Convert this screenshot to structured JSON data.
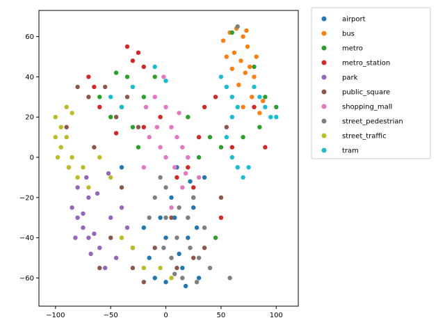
{
  "chart_data": {
    "type": "scatter",
    "title": "",
    "xlabel": "",
    "ylabel": "",
    "xlim": [
      -115,
      120
    ],
    "ylim": [
      -74,
      73
    ],
    "xticks": [
      -100,
      -50,
      0,
      50,
      100
    ],
    "yticks": [
      -60,
      -40,
      -20,
      0,
      20,
      40,
      60
    ],
    "grid": false,
    "legend_position": "outside upper-right",
    "series": [
      {
        "name": "airport",
        "color": "#1f77b4",
        "points": [
          [
            -40,
            -5
          ],
          [
            -30,
            -45
          ],
          [
            -20,
            -35
          ],
          [
            -10,
            -60
          ],
          [
            0,
            -40
          ],
          [
            5,
            -20
          ],
          [
            10,
            -5
          ],
          [
            15,
            -55
          ],
          [
            20,
            -40
          ],
          [
            25,
            -25
          ],
          [
            30,
            -60
          ],
          [
            35,
            -10
          ],
          [
            0,
            -62
          ],
          [
            -5,
            -30
          ],
          [
            12,
            -48
          ],
          [
            22,
            -12
          ],
          [
            28,
            -35
          ],
          [
            18,
            -64
          ],
          [
            -15,
            -50
          ],
          [
            8,
            -30
          ]
        ]
      },
      {
        "name": "bus",
        "color": "#ff7f0e",
        "points": [
          [
            52,
            58
          ],
          [
            58,
            62
          ],
          [
            64,
            64
          ],
          [
            70,
            60
          ],
          [
            74,
            55
          ],
          [
            76,
            45
          ],
          [
            80,
            40
          ],
          [
            72,
            42
          ],
          [
            68,
            48
          ],
          [
            62,
            52
          ],
          [
            78,
            30
          ],
          [
            85,
            22
          ],
          [
            66,
            36
          ],
          [
            60,
            44
          ],
          [
            82,
            50
          ],
          [
            55,
            50
          ],
          [
            73,
            63
          ],
          [
            88,
            28
          ],
          [
            60,
            30
          ],
          [
            70,
            25
          ]
        ]
      },
      {
        "name": "metro",
        "color": "#2ca02c",
        "points": [
          [
            -45,
            42
          ],
          [
            -35,
            40
          ],
          [
            -20,
            30
          ],
          [
            -10,
            40
          ],
          [
            -50,
            20
          ],
          [
            -60,
            30
          ],
          [
            -30,
            15
          ],
          [
            60,
            62
          ],
          [
            90,
            30
          ],
          [
            85,
            15
          ],
          [
            40,
            10
          ],
          [
            30,
            0
          ],
          [
            50,
            5
          ],
          [
            -40,
            25
          ],
          [
            45,
            -40
          ],
          [
            80,
            45
          ],
          [
            100,
            25
          ],
          [
            -25,
            5
          ],
          [
            20,
            20
          ],
          [
            70,
            10
          ]
        ]
      },
      {
        "name": "metro_station",
        "color": "#d62728",
        "points": [
          [
            -35,
            55
          ],
          [
            -30,
            48
          ],
          [
            -25,
            52
          ],
          [
            -20,
            45
          ],
          [
            -70,
            40
          ],
          [
            -65,
            35
          ],
          [
            -60,
            25
          ],
          [
            -45,
            12
          ],
          [
            -20,
            15
          ],
          [
            10,
            -10
          ],
          [
            20,
            -5
          ],
          [
            30,
            10
          ],
          [
            35,
            25
          ],
          [
            45,
            30
          ],
          [
            60,
            5
          ],
          [
            80,
            25
          ],
          [
            90,
            5
          ],
          [
            50,
            -30
          ],
          [
            25,
            -15
          ],
          [
            -5,
            20
          ]
        ]
      },
      {
        "name": "park",
        "color": "#9467bd",
        "points": [
          [
            -85,
            -25
          ],
          [
            -80,
            -30
          ],
          [
            -75,
            -35
          ],
          [
            -70,
            -40
          ],
          [
            -65,
            -38
          ],
          [
            -80,
            -15
          ],
          [
            -70,
            -20
          ],
          [
            -75,
            -28
          ],
          [
            -60,
            -45
          ],
          [
            -55,
            -55
          ],
          [
            -50,
            -30
          ],
          [
            -40,
            -25
          ],
          [
            -35,
            -35
          ],
          [
            -45,
            -50
          ],
          [
            -88,
            -5
          ],
          [
            -72,
            -10
          ],
          [
            -62,
            -18
          ],
          [
            -52,
            -8
          ],
          [
            -82,
            -40
          ],
          [
            -68,
            -48
          ]
        ]
      },
      {
        "name": "public_square",
        "color": "#8c564b",
        "points": [
          [
            -80,
            35
          ],
          [
            -70,
            30
          ],
          [
            -55,
            35
          ],
          [
            -45,
            20
          ],
          [
            -35,
            30
          ],
          [
            -25,
            15
          ],
          [
            -90,
            15
          ],
          [
            -65,
            5
          ],
          [
            -40,
            -15
          ],
          [
            -30,
            -55
          ],
          [
            -20,
            -62
          ],
          [
            -10,
            -45
          ],
          [
            10,
            -55
          ],
          [
            25,
            -50
          ],
          [
            35,
            -45
          ],
          [
            50,
            -20
          ],
          [
            55,
            15
          ],
          [
            -50,
            -40
          ],
          [
            -60,
            -55
          ],
          [
            5,
            -30
          ]
        ]
      },
      {
        "name": "shopping_mall",
        "color": "#e377c2",
        "points": [
          [
            -10,
            30
          ],
          [
            0,
            25
          ],
          [
            5,
            15
          ],
          [
            10,
            10
          ],
          [
            15,
            5
          ],
          [
            20,
            0
          ],
          [
            -5,
            5
          ],
          [
            0,
            0
          ],
          [
            8,
            -5
          ],
          [
            -15,
            10
          ],
          [
            -20,
            -5
          ],
          [
            25,
            -20
          ],
          [
            30,
            -10
          ],
          [
            15,
            -15
          ],
          [
            -8,
            15
          ],
          [
            -2,
            40
          ],
          [
            -18,
            25
          ],
          [
            5,
            -25
          ],
          [
            12,
            22
          ],
          [
            18,
            -8
          ]
        ]
      },
      {
        "name": "street_pedestrian",
        "color": "#7f7f7f",
        "points": [
          [
            -10,
            -20
          ],
          [
            0,
            -30
          ],
          [
            10,
            -40
          ],
          [
            20,
            -30
          ],
          [
            30,
            -50
          ],
          [
            15,
            -60
          ],
          [
            5,
            -50
          ],
          [
            -5,
            -10
          ],
          [
            25,
            -20
          ],
          [
            35,
            -35
          ],
          [
            0,
            -15
          ],
          [
            12,
            -25
          ],
          [
            22,
            -45
          ],
          [
            40,
            -55
          ],
          [
            -15,
            -30
          ],
          [
            65,
            65
          ],
          [
            58,
            -60
          ],
          [
            -2,
            -45
          ],
          [
            8,
            -58
          ],
          [
            28,
            -62
          ]
        ]
      },
      {
        "name": "street_traffic",
        "color": "#bcbd22",
        "points": [
          [
            -100,
            20
          ],
          [
            -95,
            15
          ],
          [
            -90,
            10
          ],
          [
            -85,
            22
          ],
          [
            -95,
            5
          ],
          [
            -100,
            10
          ],
          [
            -90,
            25
          ],
          [
            -85,
            0
          ],
          [
            -80,
            -10
          ],
          [
            -75,
            -5
          ],
          [
            -70,
            -15
          ],
          [
            -60,
            0
          ],
          [
            -50,
            -10
          ],
          [
            -40,
            -40
          ],
          [
            -30,
            -45
          ],
          [
            -20,
            -55
          ],
          [
            -5,
            -55
          ],
          [
            5,
            -60
          ],
          [
            -98,
            0
          ],
          [
            -88,
            -5
          ]
        ]
      },
      {
        "name": "tram",
        "color": "#17becf",
        "points": [
          [
            50,
            40
          ],
          [
            55,
            35
          ],
          [
            60,
            30
          ],
          [
            65,
            25
          ],
          [
            60,
            20
          ],
          [
            55,
            10
          ],
          [
            60,
            0
          ],
          [
            65,
            -5
          ],
          [
            70,
            -10
          ],
          [
            75,
            -5
          ],
          [
            80,
            35
          ],
          [
            85,
            30
          ],
          [
            90,
            25
          ],
          [
            95,
            20
          ],
          [
            100,
            20
          ],
          [
            -50,
            30
          ],
          [
            -40,
            25
          ],
          [
            -30,
            35
          ],
          [
            -10,
            45
          ],
          [
            0,
            38
          ]
        ]
      }
    ]
  }
}
